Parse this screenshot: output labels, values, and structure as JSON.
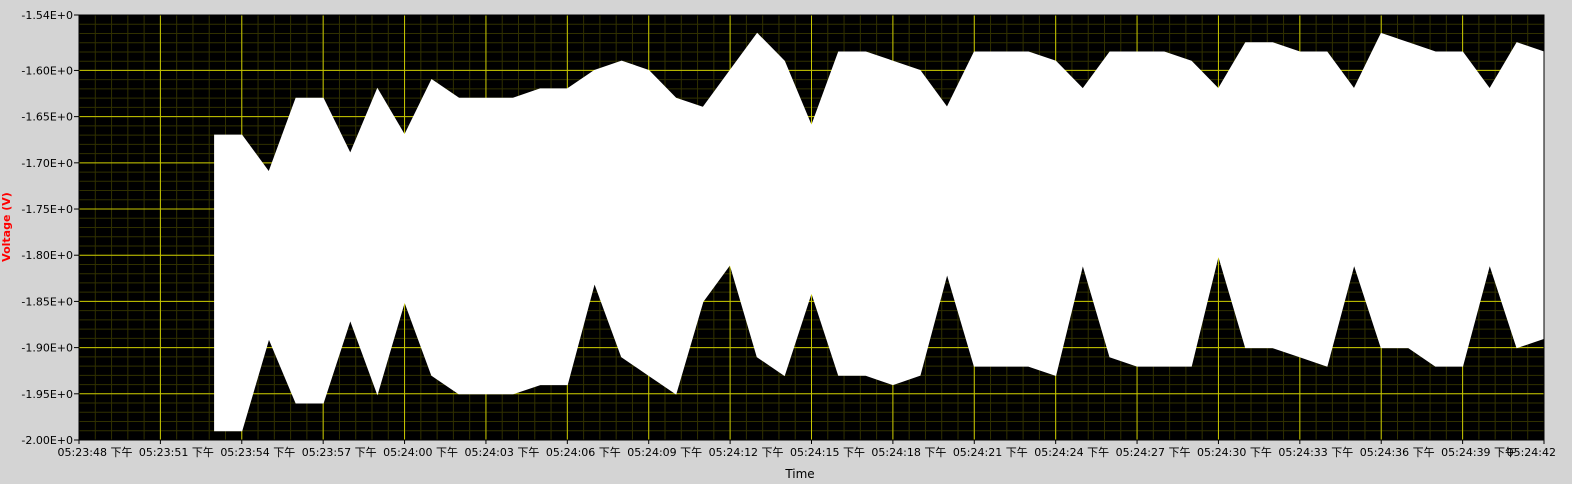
{
  "colors": {
    "panel": "#d4d4d4",
    "plot_bg": "#000000",
    "grid": "#c8c800",
    "minor_grid": "#303000",
    "trace": "#ffffff",
    "ylabel": "#ff0000"
  },
  "chart_data": {
    "type": "area",
    "title": "",
    "xlabel": "Time",
    "ylabel": "Voltage (V)",
    "ylim": [
      -2.0,
      -1.54
    ],
    "y_ticks": [
      "-1.54E+0",
      "-1.60E+0",
      "-1.65E+0",
      "-1.70E+0",
      "-1.75E+0",
      "-1.80E+0",
      "-1.85E+0",
      "-1.90E+0",
      "-1.95E+0",
      "-2.00E+0"
    ],
    "y_tick_values": [
      -1.54,
      -1.6,
      -1.65,
      -1.7,
      -1.75,
      -1.8,
      -1.85,
      -1.9,
      -1.95,
      -2.0
    ],
    "xlim": [
      "05:23:48",
      "05:24:42"
    ],
    "x_ticks": [
      "05:23:48 下午",
      "05:23:51 下午",
      "05:23:54 下午",
      "05:23:57 下午",
      "05:24:00 下午",
      "05:24:03 下午",
      "05:24:06 下午",
      "05:24:09 下午",
      "05:24:12 下午",
      "05:24:15 下午",
      "05:24:18 下午",
      "05:24:21 下午",
      "05:24:24 下午",
      "05:24:27 下午",
      "05:24:30 下午",
      "05:24:33 下午",
      "05:24:36 下午",
      "05:24:39 下午",
      "05:24:42"
    ],
    "grid": true,
    "series": [
      {
        "x": [
          "05:23:53",
          "05:23:54",
          "05:23:55",
          "05:23:56",
          "05:23:57",
          "05:23:58",
          "05:23:59",
          "05:24:00",
          "05:24:01",
          "05:24:02",
          "05:24:03",
          "05:24:04",
          "05:24:05",
          "05:24:06",
          "05:24:07",
          "05:24:08",
          "05:24:09",
          "05:24:10",
          "05:24:11",
          "05:24:12",
          "05:24:13",
          "05:24:14",
          "05:24:15",
          "05:24:16",
          "05:24:17",
          "05:24:18",
          "05:24:19",
          "05:24:20",
          "05:24:21",
          "05:24:22",
          "05:24:23",
          "05:24:24",
          "05:24:25",
          "05:24:26",
          "05:24:27",
          "05:24:28",
          "05:24:29",
          "05:24:30",
          "05:24:31",
          "05:24:32",
          "05:24:33",
          "05:24:34",
          "05:24:35",
          "05:24:36",
          "05:24:37",
          "05:24:38",
          "05:24:39",
          "05:24:40",
          "05:24:41",
          "05:24:42"
        ],
        "upper": [
          -1.67,
          -1.67,
          -1.71,
          -1.63,
          -1.63,
          -1.69,
          -1.62,
          -1.67,
          -1.61,
          -1.63,
          -1.63,
          -1.63,
          -1.62,
          -1.62,
          -1.6,
          -1.59,
          -1.6,
          -1.63,
          -1.64,
          -1.6,
          -1.56,
          -1.59,
          -1.66,
          -1.58,
          -1.58,
          -1.59,
          -1.6,
          -1.64,
          -1.58,
          -1.58,
          -1.58,
          -1.59,
          -1.62,
          -1.58,
          -1.58,
          -1.58,
          -1.59,
          -1.62,
          -1.57,
          -1.57,
          -1.58,
          -1.58,
          -1.62,
          -1.56,
          -1.57,
          -1.58,
          -1.58,
          -1.62,
          -1.57,
          -1.58
        ],
        "lower": [
          -1.99,
          -1.99,
          -1.89,
          -1.96,
          -1.96,
          -1.87,
          -1.95,
          -1.85,
          -1.93,
          -1.95,
          -1.95,
          -1.95,
          -1.94,
          -1.94,
          -1.83,
          -1.91,
          -1.93,
          -1.95,
          -1.85,
          -1.81,
          -1.91,
          -1.93,
          -1.84,
          -1.93,
          -1.93,
          -1.94,
          -1.93,
          -1.82,
          -1.92,
          -1.92,
          -1.92,
          -1.93,
          -1.81,
          -1.91,
          -1.92,
          -1.92,
          -1.92,
          -1.8,
          -1.9,
          -1.9,
          -1.91,
          -1.92,
          -1.81,
          -1.9,
          -1.9,
          -1.92,
          -1.92,
          -1.81,
          -1.9,
          -1.89
        ]
      }
    ]
  }
}
